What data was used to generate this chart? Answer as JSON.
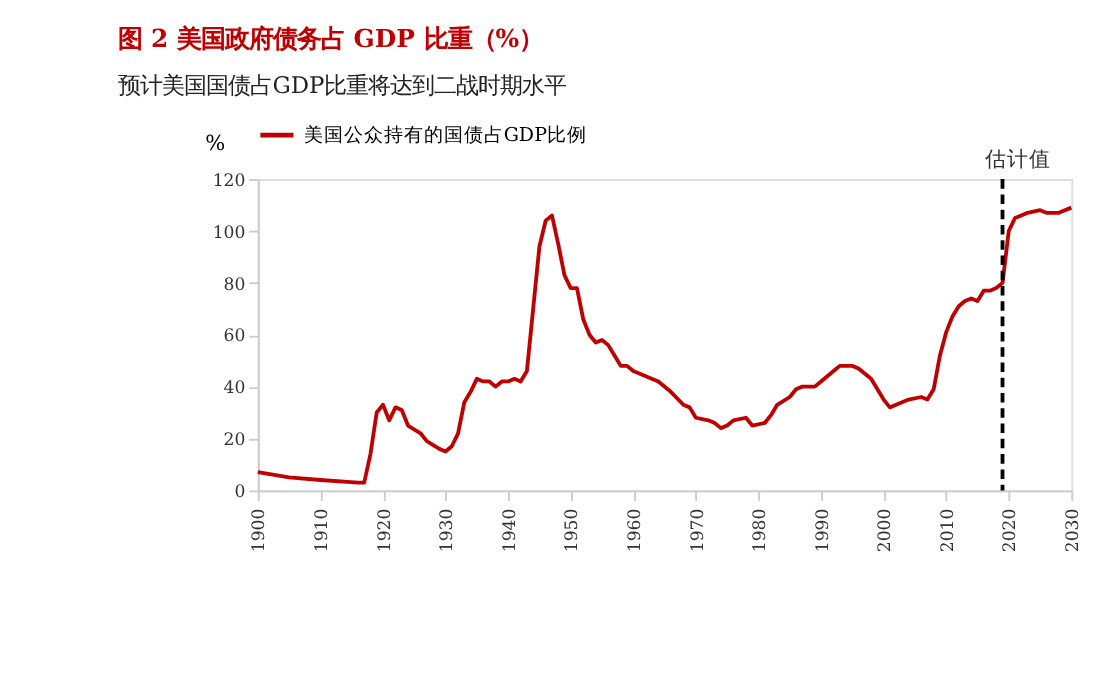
{
  "chart_data": {
    "type": "line",
    "title": "图 2 美国政府债务占 GDP 比重（%）",
    "subtitle": "预计美国国债占GDP比重将达到二战时期水平",
    "ylabel": "%",
    "x": [
      1900,
      1905,
      1910,
      1916,
      1917,
      1918,
      1919,
      1920,
      1921,
      1922,
      1923,
      1924,
      1926,
      1927,
      1929,
      1930,
      1931,
      1932,
      1933,
      1934,
      1935,
      1936,
      1937,
      1938,
      1939,
      1940,
      1941,
      1942,
      1943,
      1944,
      1945,
      1946,
      1947,
      1948,
      1949,
      1950,
      1951,
      1952,
      1953,
      1954,
      1955,
      1956,
      1957,
      1958,
      1959,
      1960,
      1962,
      1964,
      1966,
      1968,
      1969,
      1970,
      1972,
      1973,
      1974,
      1975,
      1976,
      1978,
      1979,
      1981,
      1982,
      1983,
      1985,
      1986,
      1987,
      1989,
      1990,
      1992,
      1993,
      1995,
      1996,
      1998,
      2000,
      2001,
      2002,
      2004,
      2006,
      2007,
      2008,
      2009,
      2010,
      2011,
      2012,
      2013,
      2014,
      2015,
      2016,
      2017,
      2018,
      2019,
      2020,
      2021,
      2022,
      2023,
      2025,
      2026,
      2028,
      2030
    ],
    "series": [
      {
        "name": "美国公众持有的国债占GDP比例",
        "color": "#c00000",
        "values": [
          7,
          5,
          4,
          3,
          3,
          14,
          30,
          33,
          27,
          32,
          31,
          25,
          22,
          19,
          16,
          15,
          17,
          22,
          34,
          38,
          43,
          42,
          42,
          40,
          42,
          42,
          43,
          42,
          46,
          70,
          94,
          104,
          106,
          95,
          83,
          78,
          78,
          66,
          60,
          57,
          58,
          56,
          52,
          48,
          48,
          46,
          44,
          42,
          38,
          33,
          32,
          28,
          27,
          26,
          24,
          25,
          27,
          28,
          25,
          26,
          29,
          33,
          36,
          39,
          40,
          40,
          42,
          46,
          48,
          48,
          47,
          43,
          35,
          32,
          33,
          35,
          36,
          35,
          39,
          52,
          61,
          67,
          71,
          73,
          74,
          73,
          77,
          77,
          78,
          80,
          100,
          105,
          106,
          107,
          108,
          107,
          107,
          109
        ]
      }
    ],
    "xlim": [
      1900,
      2030
    ],
    "xticks": [
      1900,
      1910,
      1920,
      1930,
      1940,
      1950,
      1960,
      1970,
      1980,
      1990,
      2000,
      2010,
      2020,
      2030
    ],
    "ylim": [
      0,
      120
    ],
    "yticks": [
      0,
      20,
      40,
      60,
      80,
      100,
      120
    ],
    "ref_lines": [
      {
        "axis": "x",
        "value": 2019,
        "label": "估计值",
        "color": "#000000",
        "line_style": "dashed"
      }
    ],
    "grid": false,
    "legend": "top",
    "marker": "none",
    "line_style": "solid"
  }
}
